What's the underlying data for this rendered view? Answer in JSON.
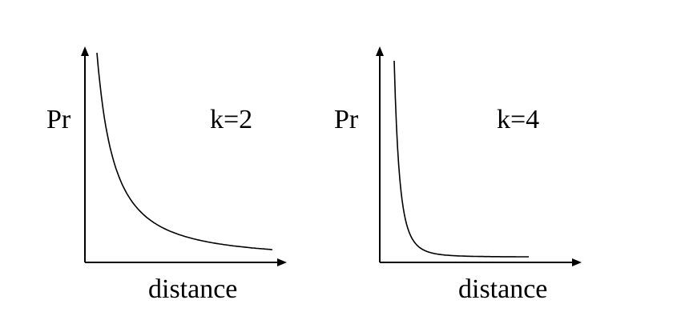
{
  "chart_data": [
    {
      "type": "line",
      "ylabel": "Pr",
      "xlabel": "distance",
      "annotation": "k=2",
      "k": 2,
      "grid": false,
      "legend": "none",
      "x_ticks": false,
      "y_ticks": false,
      "series": [
        {
          "values_description_note": "",
          "k": 2
        }
      ],
      "color": "#000000"
    },
    {
      "type": "line",
      "ylabel": "Pr",
      "xlabel": "distance",
      "annotation": "k=4",
      "k": 4,
      "grid": false,
      "legend": "none",
      "x_ticks": false,
      "y_ticks": false,
      "series": [
        {
          "values_description_note": "",
          "k": 4
        }
      ],
      "color": "#000000"
    }
  ]
}
